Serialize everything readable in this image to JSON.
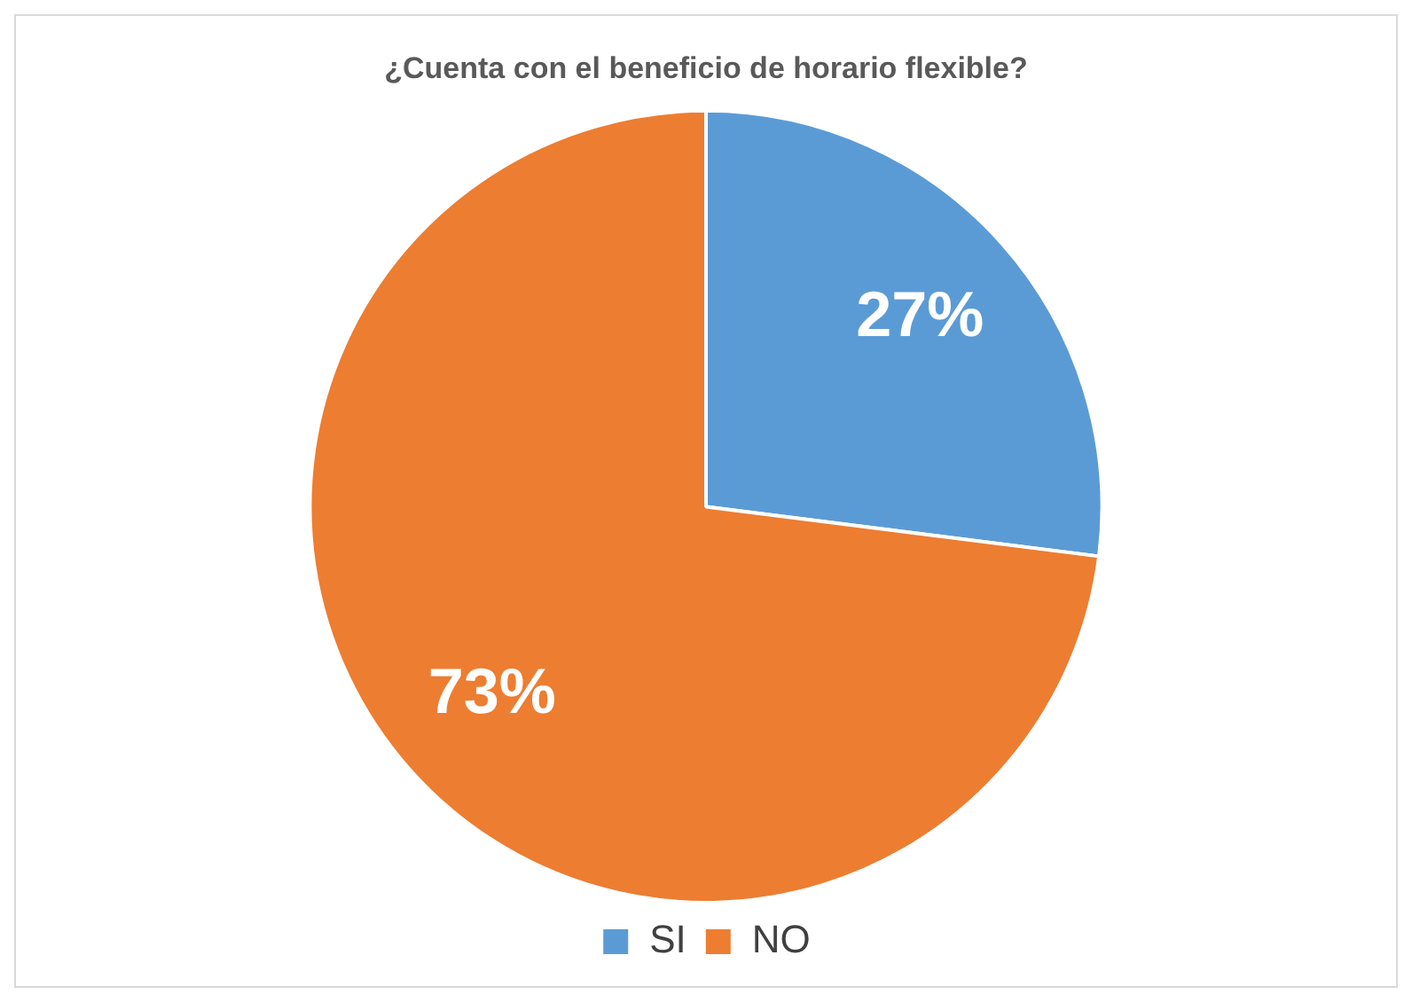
{
  "chart_data": {
    "type": "pie",
    "title": "¿Cuenta con el beneficio de horario flexible?",
    "categories": [
      "SI",
      "NO"
    ],
    "values": [
      27,
      73
    ],
    "colors": [
      "#5b9bd5",
      "#ed7d31"
    ],
    "value_labels": [
      "27%",
      "73%"
    ],
    "legend": "bottom"
  }
}
